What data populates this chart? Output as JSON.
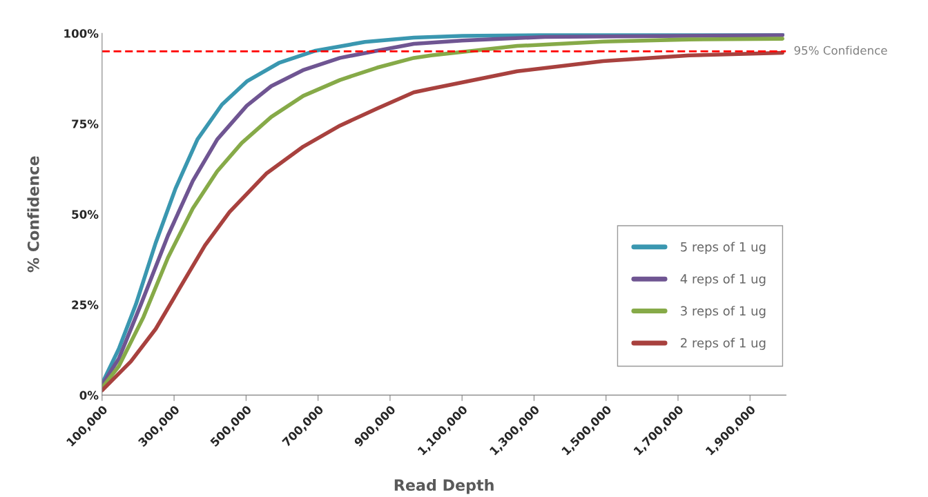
{
  "chart_data": {
    "type": "line",
    "xlabel": "Read Depth",
    "ylabel": "% Confidence",
    "xlim": [
      100000,
      2000000
    ],
    "ylim": [
      0,
      100
    ],
    "xticks": [
      {
        "value": 100000,
        "label": "100,000"
      },
      {
        "value": 300000,
        "label": "300,000"
      },
      {
        "value": 500000,
        "label": "500,000"
      },
      {
        "value": 700000,
        "label": "700,000"
      },
      {
        "value": 900000,
        "label": "900,000"
      },
      {
        "value": 1100000,
        "label": "1,100,000"
      },
      {
        "value": 1300000,
        "label": "1,300,000"
      },
      {
        "value": 1500000,
        "label": "1,500,000"
      },
      {
        "value": 1700000,
        "label": "1,700,000"
      },
      {
        "value": 1900000,
        "label": "1,900,000"
      }
    ],
    "yticks": [
      {
        "value": 0,
        "label": "0%"
      },
      {
        "value": 25,
        "label": "25%"
      },
      {
        "value": 50,
        "label": "50%"
      },
      {
        "value": 75,
        "label": "75%"
      },
      {
        "value": 100,
        "label": "100%"
      }
    ],
    "grid": false,
    "legend": "right",
    "marker": "none",
    "line_style": "solid",
    "ref_lines": [
      {
        "axis": "y",
        "value": 95,
        "label": "95% Confidence",
        "color": "#ff0000",
        "line_style": "dashed"
      }
    ],
    "series": [
      {
        "name": "5 reps of 1 ug",
        "color": "#3a97b0",
        "x": [
          100000,
          146600,
          194000,
          249000,
          304000,
          365000,
          433000,
          502000,
          591000,
          693000,
          830000,
          966000,
          1100000,
          1400000,
          1990000
        ],
        "values": [
          3.2,
          12.8,
          25.1,
          42.1,
          57.1,
          70.7,
          80.3,
          86.7,
          91.8,
          95.2,
          97.6,
          98.8,
          99.3,
          99.6,
          99.7
        ]
      },
      {
        "name": "4 reps of 1 ug",
        "color": "#6f5592",
        "x": [
          100000,
          146600,
          208000,
          283000,
          352000,
          420000,
          502000,
          570000,
          658000,
          761000,
          864000,
          966000,
          1100000,
          1330000,
          1990000
        ],
        "values": [
          2.8,
          10.1,
          25.1,
          44.1,
          59.2,
          70.7,
          80.0,
          85.4,
          89.8,
          93.2,
          95.2,
          97.1,
          98.0,
          99.0,
          99.5
        ]
      },
      {
        "name": "3 reps of 1 ug",
        "color": "#86aa48",
        "x": [
          100000,
          146600,
          215000,
          283000,
          352000,
          420000,
          488000,
          570000,
          659000,
          761000,
          864000,
          966000,
          1014000,
          1253000,
          1492000,
          1731000,
          1990000
        ],
        "values": [
          2.0,
          8.0,
          21.6,
          38.0,
          51.6,
          61.9,
          69.7,
          76.9,
          82.7,
          87.1,
          90.5,
          93.2,
          93.9,
          96.5,
          97.7,
          98.3,
          98.5
        ]
      },
      {
        "name": "2 reps of 1 ug",
        "color": "#a8413e",
        "x": [
          100000,
          180000,
          249000,
          317000,
          386000,
          454000,
          556000,
          659000,
          761000,
          864000,
          966000,
          1014000,
          1253000,
          1492000,
          1731000,
          1990000
        ],
        "values": [
          1.3,
          9.3,
          18.3,
          29.8,
          41.4,
          50.6,
          61.2,
          68.7,
          74.5,
          79.2,
          83.7,
          84.7,
          89.5,
          92.3,
          93.9,
          94.6
        ]
      }
    ]
  }
}
